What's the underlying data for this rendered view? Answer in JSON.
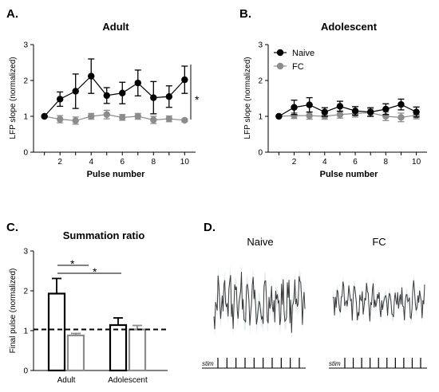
{
  "panels": {
    "A": "A.",
    "B": "B.",
    "C": "C.",
    "D": "D."
  },
  "chart_data": [
    {
      "id": "A",
      "type": "line",
      "title": "Adult",
      "xlabel": "Pulse number",
      "ylabel": "LFP slope (normalized)",
      "xlim": [
        0.3,
        10.7
      ],
      "ylim": [
        0,
        3
      ],
      "xticks": [
        2,
        4,
        6,
        8,
        10
      ],
      "yticks": [
        0,
        1,
        2,
        3
      ],
      "x": [
        1,
        2,
        3,
        4,
        5,
        6,
        7,
        8,
        9,
        10
      ],
      "series": [
        {
          "color": "#000000",
          "values": [
            1.0,
            1.48,
            1.7,
            2.12,
            1.58,
            1.65,
            1.93,
            1.52,
            1.55,
            2.02
          ],
          "errors": [
            0,
            0.2,
            0.48,
            0.48,
            0.22,
            0.3,
            0.36,
            0.45,
            0.3,
            0.38
          ]
        },
        {
          "color": "#8c8c8c",
          "values": [
            1.0,
            0.92,
            0.88,
            1.0,
            1.05,
            0.97,
            1.0,
            0.9,
            0.93,
            0.89
          ],
          "errors": [
            0,
            0.1,
            0.1,
            0.08,
            0.12,
            0.08,
            0.08,
            0.1,
            0.08,
            0.04
          ]
        }
      ],
      "annotation": "*"
    },
    {
      "id": "B",
      "type": "line",
      "title": "Adolescent",
      "xlabel": "Pulse number",
      "ylabel": "LFP slope (normalized)",
      "xlim": [
        0.3,
        10.7
      ],
      "ylim": [
        0,
        3
      ],
      "xticks": [
        2,
        4,
        6,
        8,
        10
      ],
      "yticks": [
        0,
        1,
        2,
        3
      ],
      "x": [
        1,
        2,
        3,
        4,
        5,
        6,
        7,
        8,
        9,
        10
      ],
      "legend": {
        "position": "top-left",
        "entries": [
          "Naive",
          "FC"
        ]
      },
      "series": [
        {
          "name": "Naive",
          "color": "#000000",
          "values": [
            1.0,
            1.25,
            1.32,
            1.12,
            1.28,
            1.15,
            1.12,
            1.2,
            1.33,
            1.12
          ],
          "errors": [
            0,
            0.2,
            0.2,
            0.12,
            0.14,
            0.12,
            0.12,
            0.15,
            0.15,
            0.14
          ]
        },
        {
          "name": "FC",
          "color": "#8c8c8c",
          "values": [
            1.0,
            1.02,
            1.02,
            1.0,
            1.05,
            1.08,
            1.1,
            1.0,
            0.97,
            1.03
          ],
          "errors": [
            0,
            0.08,
            0.1,
            0.08,
            0.1,
            0.1,
            0.1,
            0.12,
            0.12,
            0.1
          ]
        }
      ]
    },
    {
      "id": "C",
      "type": "bar",
      "title": "Summation ratio",
      "ylabel": "Final pulse (normalized)",
      "categories": [
        "Adult",
        "Adolescent"
      ],
      "ylim": [
        0,
        3
      ],
      "yticks": [
        0,
        1,
        2,
        3
      ],
      "reference_line": 1.03,
      "series": [
        {
          "color": "#000000",
          "values": [
            1.93,
            1.14
          ],
          "errors": [
            0.38,
            0.18
          ]
        },
        {
          "color": "#8c8c8c",
          "values": [
            0.88,
            1.03
          ],
          "errors": [
            0.05,
            0.1
          ]
        }
      ],
      "annotations": [
        "*",
        "*"
      ]
    }
  ],
  "traces": {
    "naive_label": "Naive",
    "fc_label": "FC",
    "stim_label": "stim",
    "stim_pulses": 10
  }
}
